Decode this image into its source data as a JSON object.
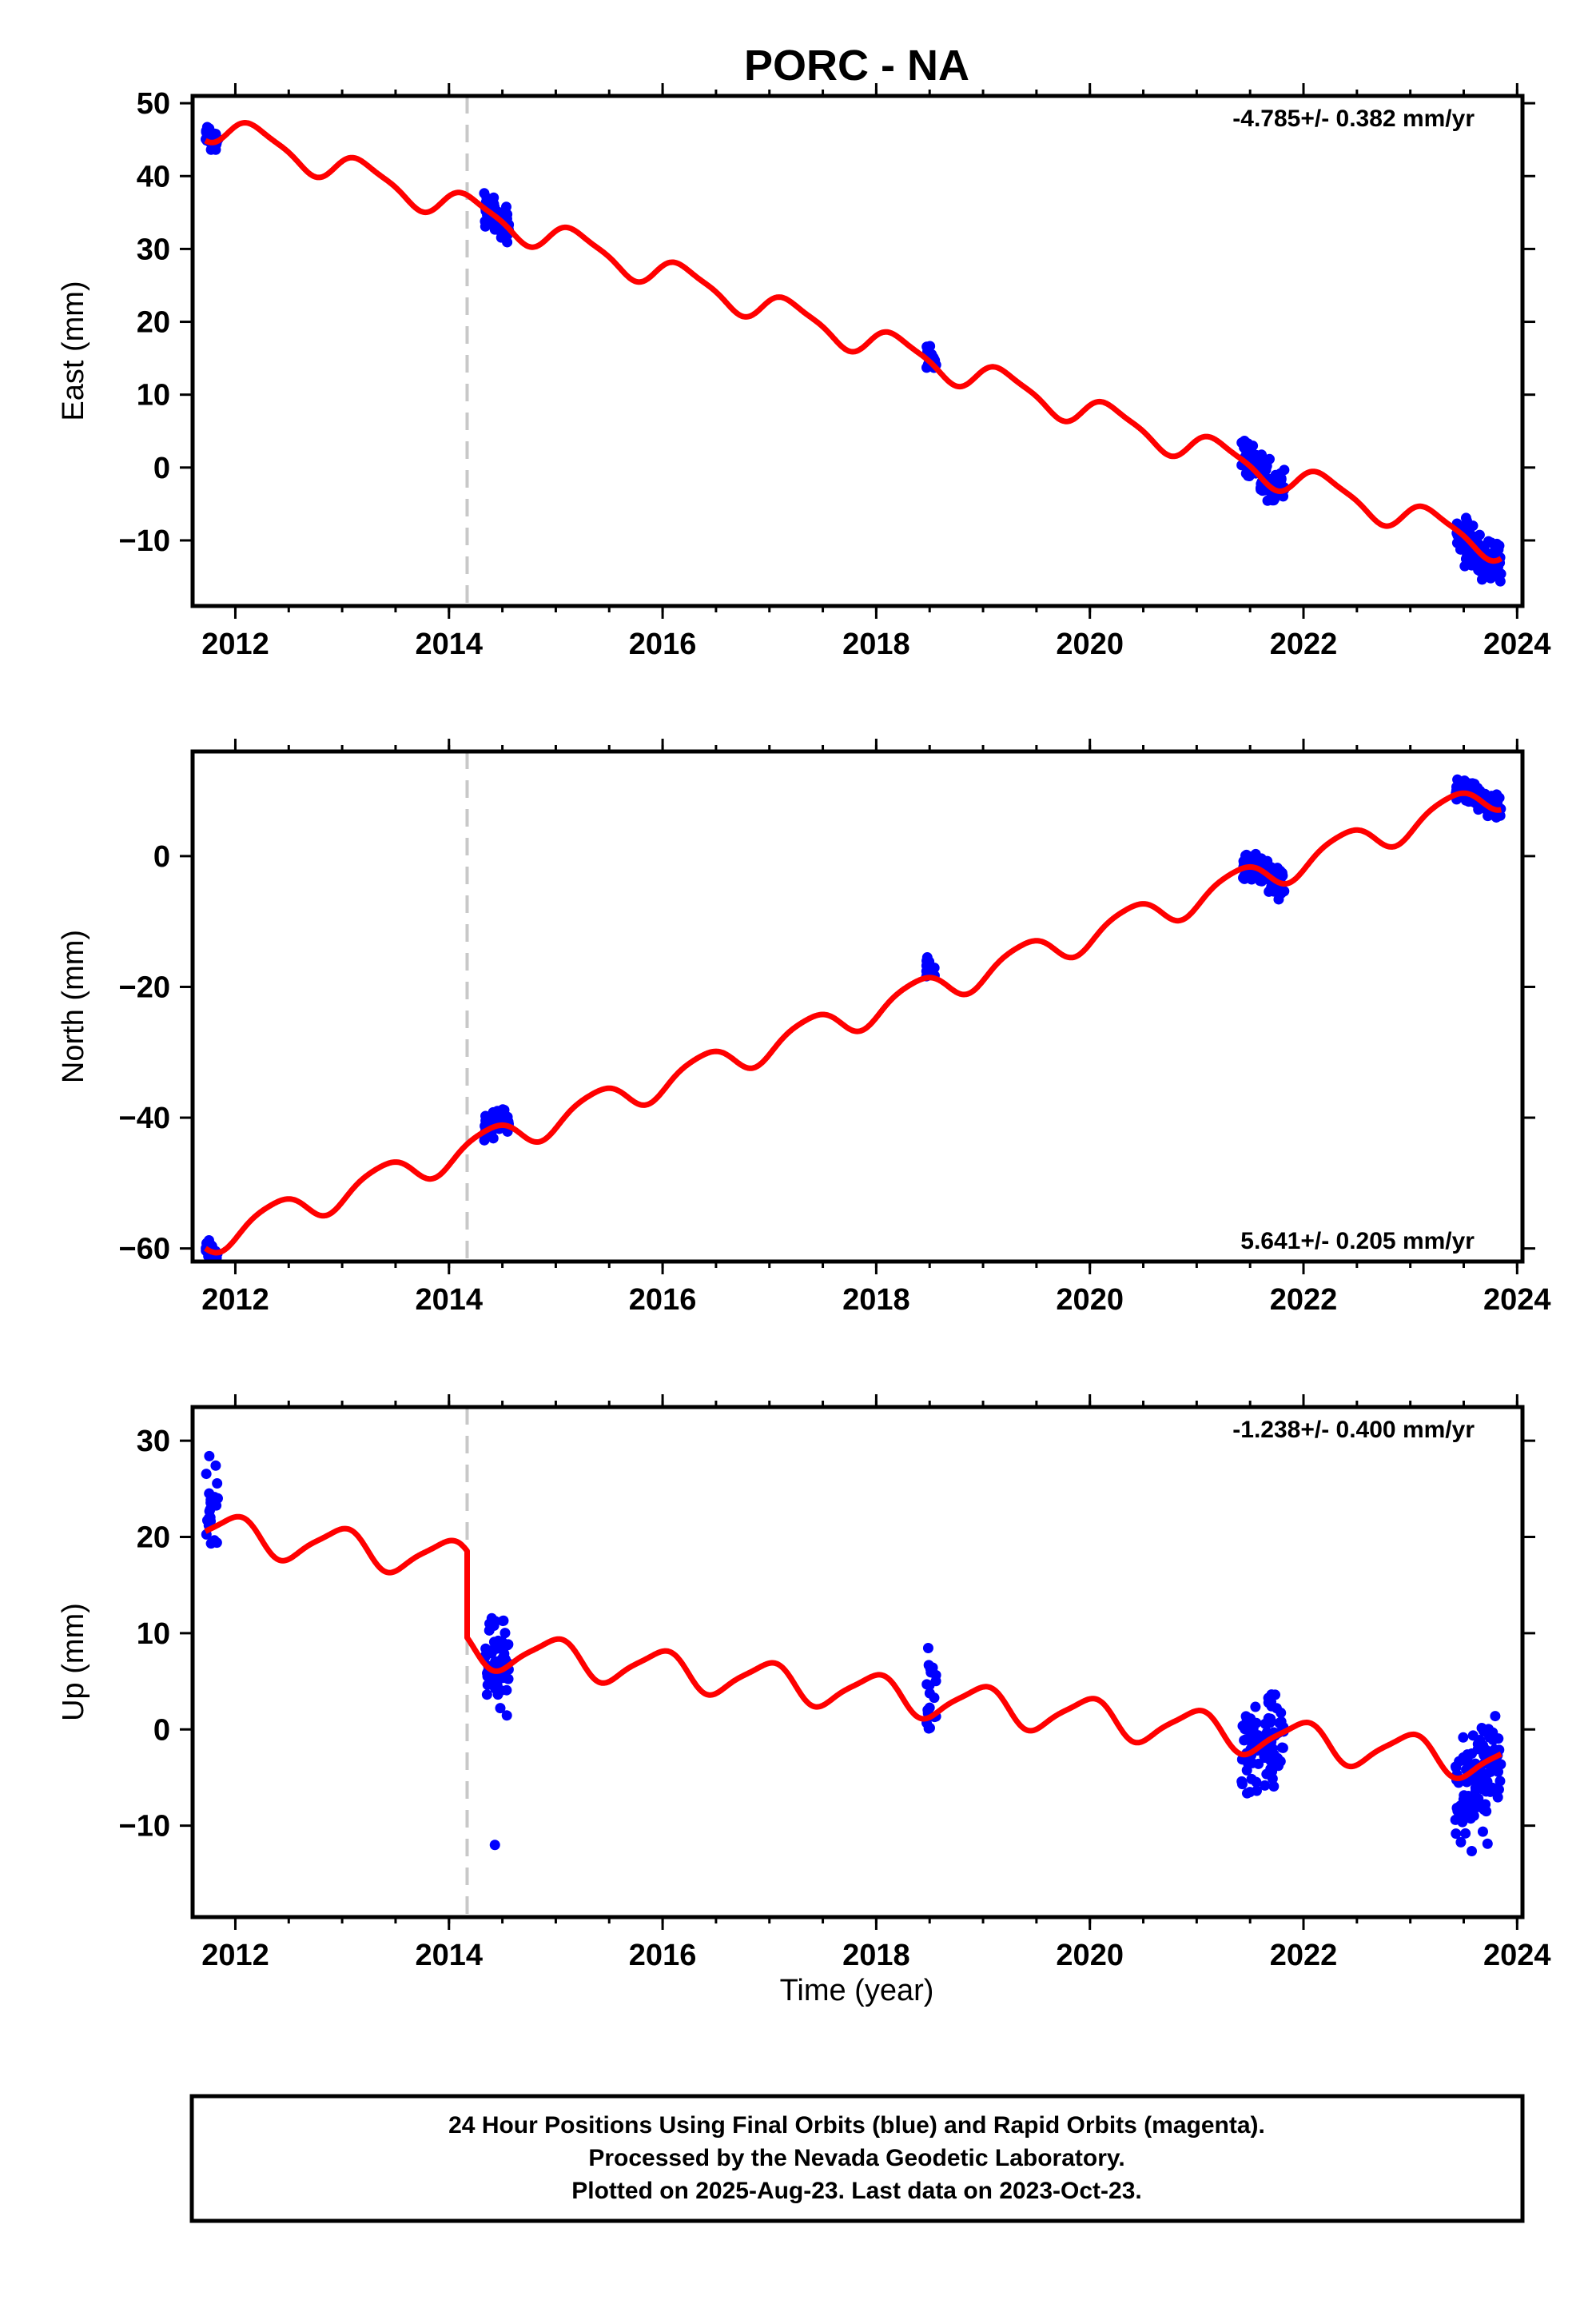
{
  "chart_data": [
    {
      "type": "scatter",
      "title": "PORC - NA",
      "ylabel": "East (mm)",
      "xlabel": "",
      "xlim": [
        2011.6,
        2024.05
      ],
      "ylim": [
        -19,
        51
      ],
      "x_ticks": [
        2012,
        2014,
        2016,
        2018,
        2020,
        2022,
        2024
      ],
      "x_tick_labels": [
        "2012",
        "2014",
        "2016",
        "2018",
        "2020",
        "2022",
        "2024"
      ],
      "y_ticks": [
        -10,
        0,
        10,
        20,
        30,
        40,
        50
      ],
      "y_tick_labels": [
        "−10",
        "0",
        "10",
        "20",
        "30",
        "40",
        "50"
      ],
      "rate": "-4.785+/- 0.382 mm/yr",
      "rate_position": "top-right",
      "offset_epoch": 2014.17,
      "model": {
        "t0": 2011.75,
        "y0": 47.0,
        "slope": -4.785,
        "annual_amp": 2.0,
        "annual_phase": 0.3,
        "semi_amp": 0.5,
        "semi_phase": 1.0,
        "offset": 0
      },
      "clusters": [
        {
          "start": 2011.72,
          "end": 2011.84,
          "center_offset": 0.5,
          "spread": 3.0,
          "count": 25
        },
        {
          "start": 2014.33,
          "end": 2014.56,
          "center_offset": 0.0,
          "spread": 3.5,
          "count": 70
        },
        {
          "start": 2018.47,
          "end": 2018.56,
          "center_offset": 0.5,
          "spread": 2.5,
          "count": 20
        },
        {
          "start": 2021.42,
          "end": 2021.82,
          "center_offset": 0.5,
          "spread": 4.0,
          "count": 90
        },
        {
          "start": 2023.42,
          "end": 2023.85,
          "center_offset": 0.0,
          "spread": 4.5,
          "count": 110
        }
      ]
    },
    {
      "type": "scatter",
      "ylabel": "North (mm)",
      "xlabel": "",
      "xlim": [
        2011.6,
        2024.05
      ],
      "ylim": [
        -62,
        16
      ],
      "x_ticks": [
        2012,
        2014,
        2016,
        2018,
        2020,
        2022,
        2024
      ],
      "x_tick_labels": [
        "2012",
        "2014",
        "2016",
        "2018",
        "2020",
        "2022",
        "2024"
      ],
      "y_ticks": [
        -60,
        -40,
        -20,
        0
      ],
      "y_tick_labels": [
        "−60",
        "−40",
        "−20",
        "0"
      ],
      "rate": "5.641+/- 0.205 mm/yr",
      "rate_position": "bottom-right",
      "offset_epoch": 2014.17,
      "model": {
        "t0": 2011.75,
        "y0": -58.5,
        "slope": 5.641,
        "annual_amp": 2.3,
        "annual_phase": -0.8,
        "semi_amp": 0.4,
        "semi_phase": 0.5,
        "offset": 0
      },
      "clusters": [
        {
          "start": 2011.72,
          "end": 2011.84,
          "center_offset": 0.0,
          "spread": 2.5,
          "count": 25
        },
        {
          "start": 2014.33,
          "end": 2014.56,
          "center_offset": 0.5,
          "spread": 3.0,
          "count": 70
        },
        {
          "start": 2018.47,
          "end": 2018.56,
          "center_offset": 1.0,
          "spread": 3.0,
          "count": 20
        },
        {
          "start": 2021.42,
          "end": 2021.82,
          "center_offset": 0.0,
          "spread": 3.5,
          "count": 90
        },
        {
          "start": 2023.42,
          "end": 2023.85,
          "center_offset": 0.5,
          "spread": 3.0,
          "count": 110
        }
      ]
    },
    {
      "type": "scatter",
      "ylabel": "Up (mm)",
      "xlabel": "Time (year)",
      "xlim": [
        2011.6,
        2024.05
      ],
      "ylim": [
        -19.5,
        33.5
      ],
      "x_ticks": [
        2012,
        2014,
        2016,
        2018,
        2020,
        2022,
        2024
      ],
      "x_tick_labels": [
        "2012",
        "2014",
        "2016",
        "2018",
        "2020",
        "2022",
        "2024"
      ],
      "y_ticks": [
        -10,
        0,
        10,
        20,
        30
      ],
      "y_tick_labels": [
        "−10",
        "0",
        "10",
        "20",
        "30"
      ],
      "rate": "-1.238+/- 0.400 mm/yr",
      "rate_position": "top-right",
      "offset_epoch": 2014.17,
      "model": {
        "t0": 2011.75,
        "y0": 20.5,
        "slope": -1.238,
        "annual_amp": 1.9,
        "annual_phase": 1.7,
        "semi_amp": 0.4,
        "semi_phase": 0.0,
        "offset": -9.0
      },
      "clusters": [
        {
          "start": 2011.72,
          "end": 2011.84,
          "center_offset": 1.5,
          "spread": 8.0,
          "count": 25
        },
        {
          "start": 2014.33,
          "end": 2014.56,
          "center_offset": 0.5,
          "spread": 7.0,
          "count": 70
        },
        {
          "start": 2018.47,
          "end": 2018.56,
          "center_offset": 2.0,
          "spread": 7.0,
          "count": 20
        },
        {
          "start": 2021.42,
          "end": 2021.82,
          "center_offset": 0.0,
          "spread": 6.5,
          "count": 90
        },
        {
          "start": 2023.42,
          "end": 2023.85,
          "center_offset": -1.0,
          "spread": 9.0,
          "count": 110
        }
      ],
      "outliers": [
        {
          "x": 2014.43,
          "y": -12.0
        }
      ]
    }
  ],
  "footer": {
    "line1": "24 Hour Positions Using Final Orbits (blue) and Rapid Orbits (magenta).",
    "line2": "Processed by the Nevada Geodetic Laboratory.",
    "line3": "Plotted on 2025-Aug-23. Last data on 2023-Oct-23."
  },
  "colors": {
    "final_orbits": "#0000ff",
    "model_line": "#ff0000",
    "offset_line": "#c8c8c8",
    "frame": "#000000"
  }
}
